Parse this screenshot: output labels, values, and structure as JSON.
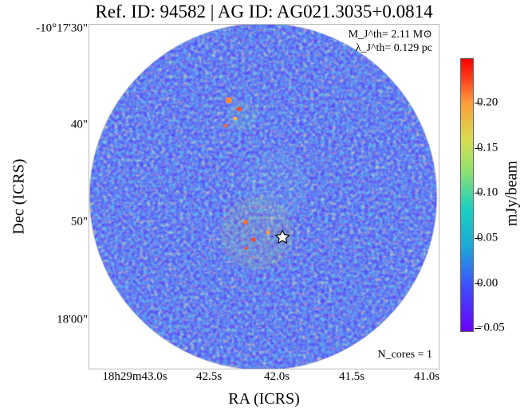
{
  "figure": {
    "title": "Ref. ID: 94582 | AG ID: AG021.3035+0.0814",
    "x_label": "RA (ICRS)",
    "y_label": "Dec (ICRS)",
    "colorbar_label": "mJy/beam",
    "mass_text": "M_J^th= 2.11 M⊙",
    "lambda_text": "λ_J^th= 0.129 pc",
    "cores_text": "N_cores = 1",
    "icon_star": "star-icon"
  },
  "ticks": {
    "y": [
      "-10°17'30\"",
      "40\"",
      "50\"",
      "18'00\""
    ],
    "x": [
      "18h29m43.0s",
      "42.5s",
      "42.0s",
      "41.5s",
      "41.0s"
    ],
    "colorbar": [
      "0.20",
      "0.15",
      "0.10",
      "0.05",
      "0.00",
      "−0.05"
    ]
  },
  "colors": {
    "purple": "#6a00ff",
    "blue": "#3f4cff",
    "cyan": "#19d0c2",
    "green": "#8fe16f",
    "yellow": "#d6df4f",
    "orange": "#ff9b3a",
    "red": "#ff0000"
  }
}
